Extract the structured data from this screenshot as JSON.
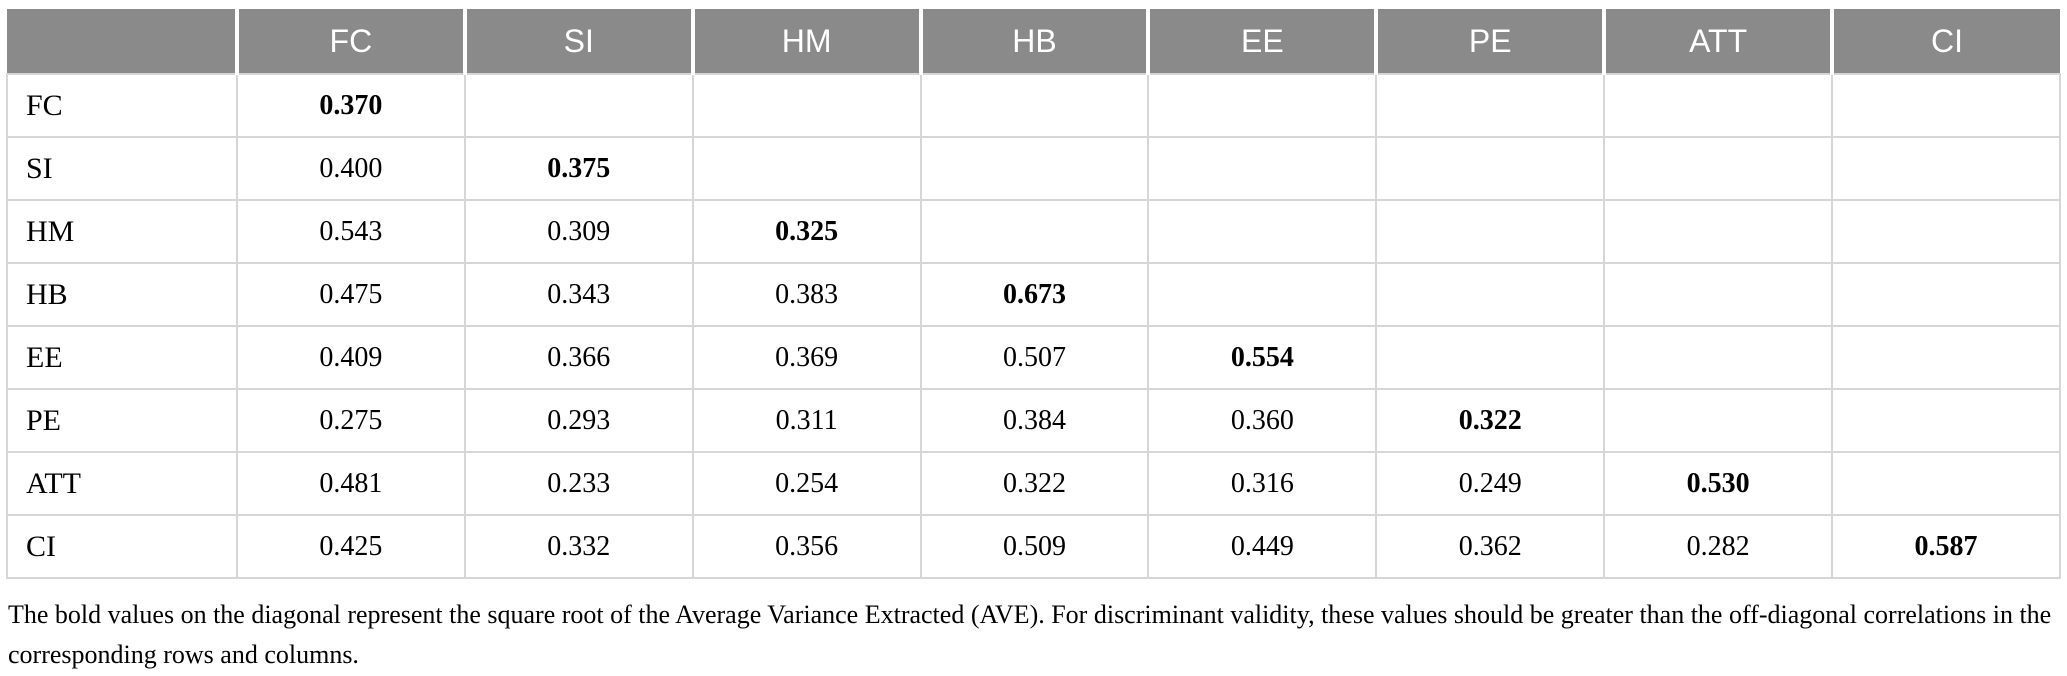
{
  "table": {
    "columns": [
      "",
      "FC",
      "SI",
      "HM",
      "HB",
      "EE",
      "PE",
      "ATT",
      "CI"
    ],
    "rows": [
      {
        "label": "FC",
        "values": [
          "0.370",
          "",
          "",
          "",
          "",
          "",
          "",
          ""
        ]
      },
      {
        "label": "SI",
        "values": [
          "0.400",
          "0.375",
          "",
          "",
          "",
          "",
          "",
          ""
        ]
      },
      {
        "label": "HM",
        "values": [
          "0.543",
          "0.309",
          "0.325",
          "",
          "",
          "",
          "",
          ""
        ]
      },
      {
        "label": "HB",
        "values": [
          "0.475",
          "0.343",
          "0.383",
          "0.673",
          "",
          "",
          "",
          ""
        ]
      },
      {
        "label": "EE",
        "values": [
          "0.409",
          "0.366",
          "0.369",
          "0.507",
          "0.554",
          "",
          "",
          ""
        ]
      },
      {
        "label": "PE",
        "values": [
          "0.275",
          "0.293",
          "0.311",
          "0.384",
          "0.360",
          "0.322",
          "",
          ""
        ]
      },
      {
        "label": "ATT",
        "values": [
          "0.481",
          "0.233",
          "0.254",
          "0.322",
          "0.316",
          "0.249",
          "0.530",
          ""
        ]
      },
      {
        "label": "CI",
        "values": [
          "0.425",
          "0.332",
          "0.356",
          "0.509",
          "0.449",
          "0.362",
          "0.282",
          "0.587"
        ]
      }
    ],
    "diagonal_note": "diagonal cell index equals row index; diagonal values are bold"
  },
  "colors": {
    "header_background": "#8a8a8a",
    "header_text": "#ffffff",
    "grid_line": "#d6d6d6"
  },
  "footnote": "The bold values on the diagonal represent the square root of the Average Variance Extracted (AVE). For discriminant validity, these values should be greater than the off-diagonal correlations in the corresponding rows and columns."
}
